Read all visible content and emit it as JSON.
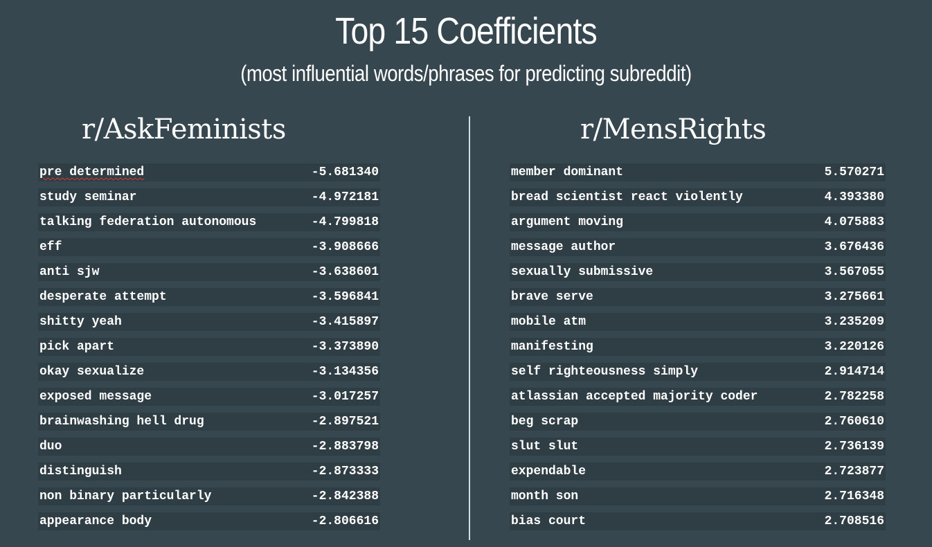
{
  "heading": {
    "title": "Top 15 Coefficients",
    "subtitle": "(most influential words/phrases for predicting subreddit)"
  },
  "left": {
    "title": "r/AskFeminists",
    "rows": [
      {
        "term": "pre determined",
        "value": "-5.681340"
      },
      {
        "term": "study seminar",
        "value": "-4.972181"
      },
      {
        "term": "talking federation autonomous",
        "value": "-4.799818"
      },
      {
        "term": "eff",
        "value": "-3.908666"
      },
      {
        "term": "anti sjw",
        "value": "-3.638601"
      },
      {
        "term": "desperate attempt",
        "value": "-3.596841"
      },
      {
        "term": "shitty yeah",
        "value": "-3.415897"
      },
      {
        "term": "pick apart",
        "value": "-3.373890"
      },
      {
        "term": "okay sexualize",
        "value": "-3.134356"
      },
      {
        "term": "exposed message",
        "value": "-3.017257"
      },
      {
        "term": "brainwashing hell drug",
        "value": "-2.897521"
      },
      {
        "term": "duo",
        "value": "-2.883798"
      },
      {
        "term": "distinguish",
        "value": "-2.873333"
      },
      {
        "term": "non binary particularly",
        "value": "-2.842388"
      },
      {
        "term": "appearance body",
        "value": "-2.806616"
      }
    ]
  },
  "right": {
    "title": "r/MensRights",
    "rows": [
      {
        "term": "member dominant",
        "value": "5.570271"
      },
      {
        "term": "bread scientist react violently",
        "value": "4.393380"
      },
      {
        "term": "argument moving",
        "value": "4.075883"
      },
      {
        "term": "message author",
        "value": "3.676436"
      },
      {
        "term": "sexually submissive",
        "value": "3.567055"
      },
      {
        "term": "brave serve",
        "value": "3.275661"
      },
      {
        "term": "mobile atm",
        "value": "3.235209"
      },
      {
        "term": "manifesting",
        "value": "3.220126"
      },
      {
        "term": "self righteousness simply",
        "value": "2.914714"
      },
      {
        "term": "atlassian accepted majority coder",
        "value": "2.782258"
      },
      {
        "term": "beg scrap",
        "value": "2.760610"
      },
      {
        "term": "slut slut",
        "value": "2.736139"
      },
      {
        "term": "expendable",
        "value": "2.723877"
      },
      {
        "term": "month son",
        "value": "2.716348"
      },
      {
        "term": "bias court",
        "value": "2.708516"
      }
    ]
  }
}
